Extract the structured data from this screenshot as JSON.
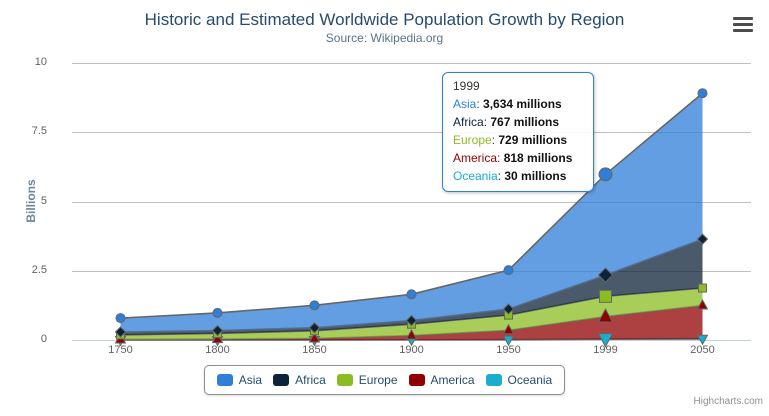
{
  "chart": {
    "title": "Historic and Estimated Worldwide Population Growth by Region",
    "subtitle": "Source: Wikipedia.org",
    "credits": "Highcharts.com"
  },
  "chart_data": {
    "type": "area",
    "stacking": "normal",
    "title": "Historic and Estimated Worldwide Population Growth by Region",
    "subtitle": "Source: Wikipedia.org",
    "categories": [
      "1750",
      "1800",
      "1850",
      "1900",
      "1950",
      "1999",
      "2050"
    ],
    "xlabel": "",
    "ylabel": "Billions",
    "unit": "millions",
    "ylim_billions": [
      0,
      10
    ],
    "yticks": [
      "0",
      "2.5",
      "5",
      "7.5",
      "10"
    ],
    "grid": true,
    "legend_position": "bottom",
    "hover_category": "1999",
    "series": [
      {
        "name": "Asia",
        "color": "#2f7ed8",
        "marker": "circle",
        "values": [
          502,
          635,
          809,
          947,
          1402,
          3634,
          5268
        ]
      },
      {
        "name": "Africa",
        "color": "#0d233a",
        "marker": "diamond",
        "values": [
          106,
          107,
          111,
          133,
          221,
          767,
          1766
        ]
      },
      {
        "name": "Europe",
        "color": "#8bbc21",
        "marker": "square",
        "values": [
          163,
          203,
          276,
          408,
          547,
          729,
          628
        ]
      },
      {
        "name": "America",
        "color": "#910000",
        "marker": "triangle",
        "values": [
          18,
          31,
          54,
          156,
          339,
          818,
          1201
        ]
      },
      {
        "name": "Oceania",
        "color": "#1aadce",
        "marker": "triangle-down",
        "values": [
          2,
          2,
          2,
          6,
          13,
          30,
          46
        ]
      }
    ]
  },
  "tooltip": {
    "header": "1999",
    "rows": [
      {
        "name": "Asia",
        "value": "3,634 millions",
        "color": "#2f7ed8"
      },
      {
        "name": "Africa",
        "value": "767 millions",
        "color": "#0d233a"
      },
      {
        "name": "Europe",
        "value": "729 millions",
        "color": "#8bbc21"
      },
      {
        "name": "America",
        "value": "818 millions",
        "color": "#910000"
      },
      {
        "name": "Oceania",
        "value": "30 millions",
        "color": "#1aadce"
      }
    ]
  },
  "icons": {
    "export_menu": "hamburger-icon"
  },
  "colors": {
    "grid": "#c0c0c0",
    "axis_line": "#c0d0e0",
    "series_outline": "#666666",
    "title": "#274b6d",
    "subtitle": "#5a738c",
    "axis_label": "#606060",
    "axis_title": "#6d869f",
    "legend_text": "#274b6d",
    "tooltip_border": "#2f7ed8"
  }
}
